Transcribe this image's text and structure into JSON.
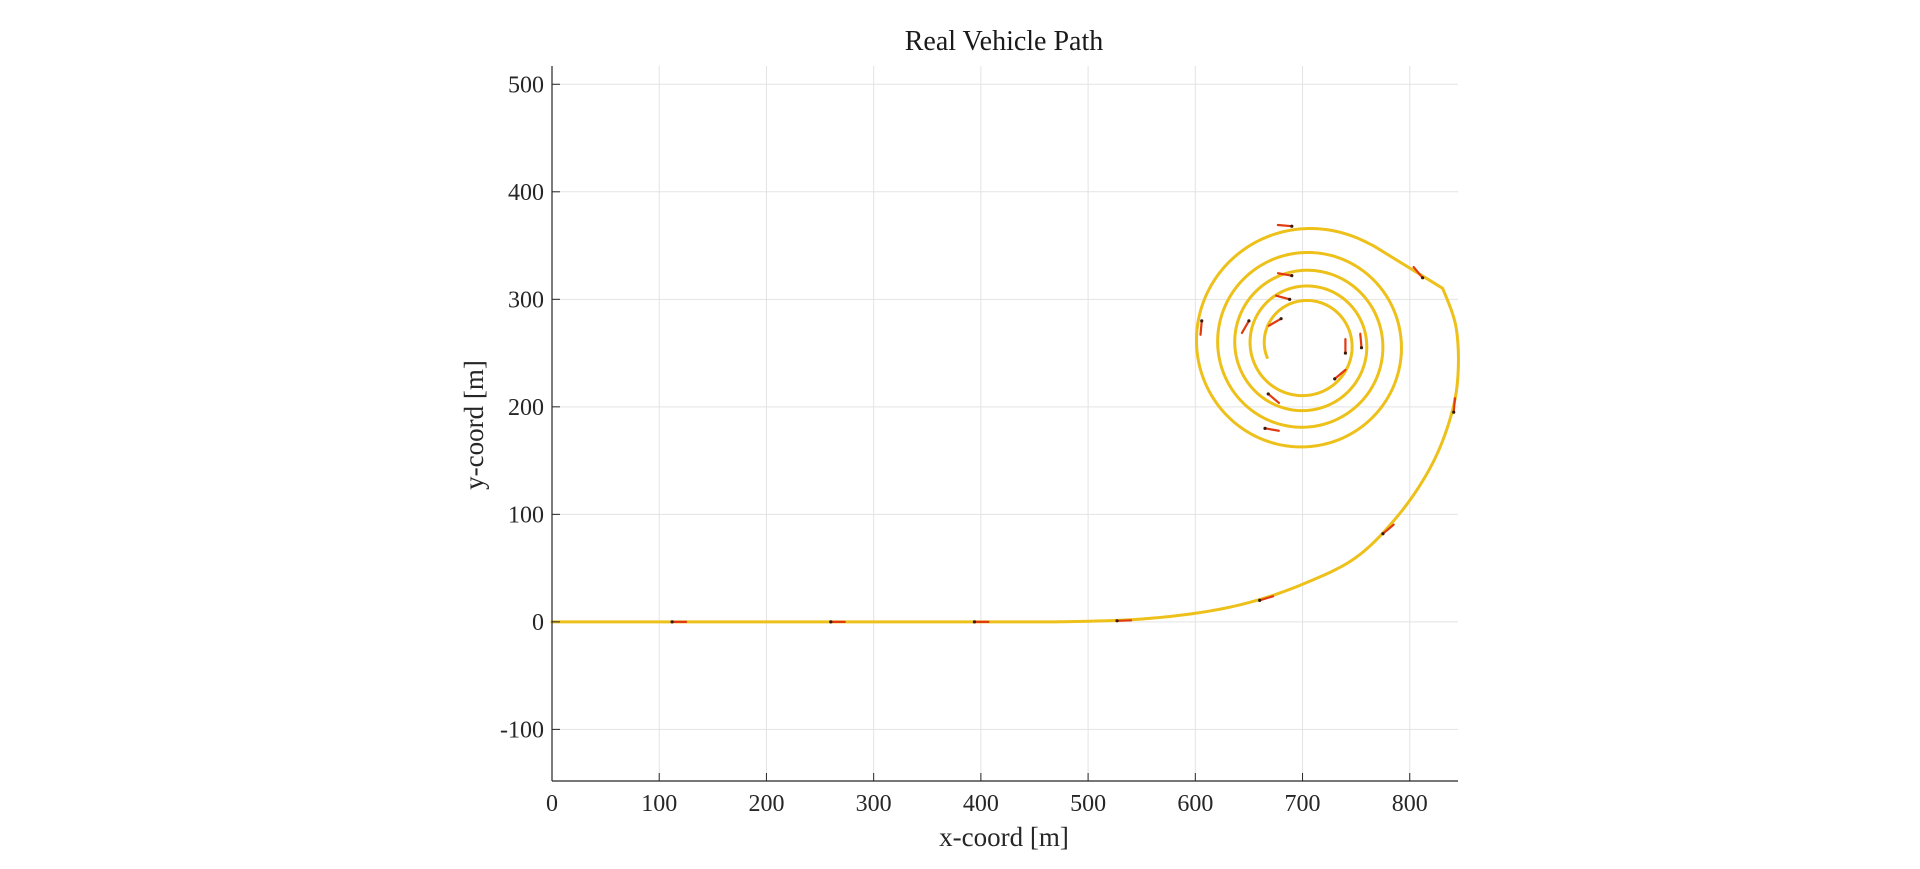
{
  "chart_data": {
    "type": "line",
    "title": "Real Vehicle Path",
    "xlabel": "x-coord [m]",
    "ylabel": "y-coord [m]",
    "xlim": [
      0,
      845
    ],
    "ylim": [
      -148,
      517
    ],
    "xticks": [
      0,
      100,
      200,
      300,
      400,
      500,
      600,
      700,
      800
    ],
    "yticks": [
      -100,
      0,
      100,
      200,
      300,
      400,
      500
    ],
    "grid": true,
    "legend": "none",
    "colors": {
      "path": "#EDC01A",
      "heading_marker": "#E03A12",
      "grid": "#E3E3E3",
      "axis": "#262626"
    },
    "series": [
      {
        "straight": {
          "x": [
            0,
            470
          ],
          "y": [
            0,
            0
          ]
        },
        "entry_curve": {
          "x": [
            470,
            540,
            600,
            650,
            700,
            750,
            790,
            820,
            838,
            845,
            843,
            830
          ],
          "y": [
            0,
            2,
            8,
            18,
            35,
            60,
            100,
            145,
            190,
            230,
            275,
            312
          ]
        },
        "spiral": {
          "center": [
            702,
            258
          ],
          "start_angle_deg": 55,
          "start_radius": 112,
          "end_radius": 37,
          "turns": 4.4
        }
      }
    ],
    "heading_markers": [
      {
        "x": 112,
        "y": 0,
        "angle": 0
      },
      {
        "x": 260,
        "y": 0,
        "angle": 0
      },
      {
        "x": 394,
        "y": 0,
        "angle": 0
      },
      {
        "x": 527,
        "y": 1,
        "angle": 2
      },
      {
        "x": 660,
        "y": 20,
        "angle": 17
      },
      {
        "x": 775,
        "y": 82,
        "angle": 40
      },
      {
        "x": 841,
        "y": 195,
        "angle": 85
      },
      {
        "x": 812,
        "y": 320,
        "angle": 130
      },
      {
        "x": 690,
        "y": 368,
        "angle": 175
      },
      {
        "x": 606,
        "y": 280,
        "angle": 265
      },
      {
        "x": 665,
        "y": 180,
        "angle": 350
      },
      {
        "x": 755,
        "y": 255,
        "angle": 95
      },
      {
        "x": 690,
        "y": 322,
        "angle": 170
      },
      {
        "x": 650,
        "y": 280,
        "angle": 240
      },
      {
        "x": 668,
        "y": 212,
        "angle": 320
      },
      {
        "x": 740,
        "y": 250,
        "angle": 90
      },
      {
        "x": 688,
        "y": 300,
        "angle": 165
      },
      {
        "x": 730,
        "y": 226,
        "angle": 40
      },
      {
        "x": 680,
        "y": 282,
        "angle": 210
      }
    ]
  }
}
